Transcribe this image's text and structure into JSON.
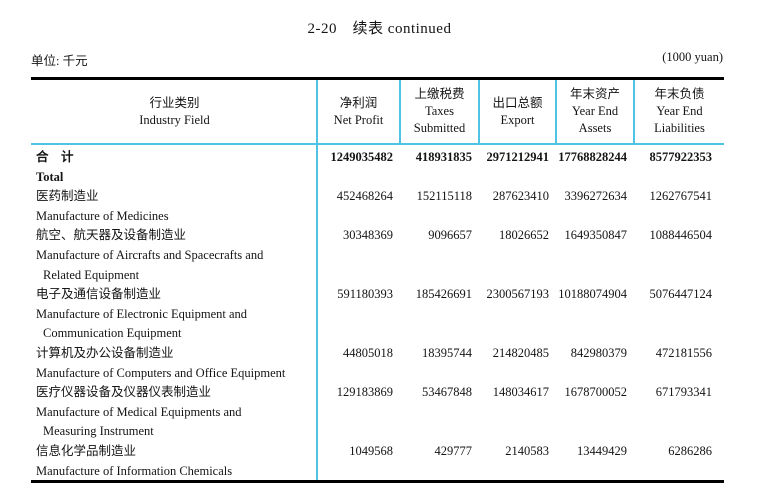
{
  "page": {
    "title": "2-20　续表 continued",
    "unit_left": "单位: 千元",
    "unit_right": "(1000 yuan)"
  },
  "colors": {
    "separator_cyan": "#4fc3e4",
    "border_black": "#000000"
  },
  "table": {
    "columns": [
      {
        "cn": "行业类别",
        "en_lines": [
          "Industry Field"
        ]
      },
      {
        "cn": "净利润",
        "en_lines": [
          "Net Profit"
        ]
      },
      {
        "cn": "上缴税费",
        "en_lines": [
          "Taxes",
          "Submitted"
        ]
      },
      {
        "cn": "出口总额",
        "en_lines": [
          "Export"
        ]
      },
      {
        "cn": "年末资产",
        "en_lines": [
          "Year End",
          "Assets"
        ]
      },
      {
        "cn": "年末负债",
        "en_lines": [
          "Year End",
          "Liabilities"
        ]
      }
    ],
    "rows": [
      {
        "cn": "合　计",
        "en_lines": [
          "Total"
        ],
        "bold": true,
        "values": [
          "1249035482",
          "418931835",
          "2971212941",
          "17768828244",
          "8577922353"
        ]
      },
      {
        "cn": "医药制造业",
        "en_lines": [
          "Manufacture of Medicines"
        ],
        "bold": false,
        "values": [
          "452468264",
          "152115118",
          "287623410",
          "3396272634",
          "1262767541"
        ]
      },
      {
        "cn": "航空、航天器及设备制造业",
        "en_lines": [
          "Manufacture of Aircrafts and Spacecrafts and",
          "Related Equipment"
        ],
        "bold": false,
        "values": [
          "30348369",
          "9096657",
          "18026652",
          "1649350847",
          "1088446504"
        ]
      },
      {
        "cn": "电子及通信设备制造业",
        "en_lines": [
          "Manufacture of Electronic Equipment and",
          "Communication Equipment"
        ],
        "bold": false,
        "values": [
          "591180393",
          "185426691",
          "2300567193",
          "10188074904",
          "5076447124"
        ]
      },
      {
        "cn": "计算机及办公设备制造业",
        "en_lines": [
          "Manufacture of Computers and Office Equipment"
        ],
        "bold": false,
        "values": [
          "44805018",
          "18395744",
          "214820485",
          "842980379",
          "472181556"
        ]
      },
      {
        "cn": "医疗仪器设备及仪器仪表制造业",
        "en_lines": [
          "Manufacture of Medical Equipments and",
          "Measuring Instrument"
        ],
        "bold": false,
        "values": [
          "129183869",
          "53467848",
          "148034617",
          "1678700052",
          "671793341"
        ]
      },
      {
        "cn": "信息化学品制造业",
        "en_lines": [
          "Manufacture of Information Chemicals"
        ],
        "bold": false,
        "values": [
          "1049568",
          "429777",
          "2140583",
          "13449429",
          "6286286"
        ]
      }
    ]
  }
}
